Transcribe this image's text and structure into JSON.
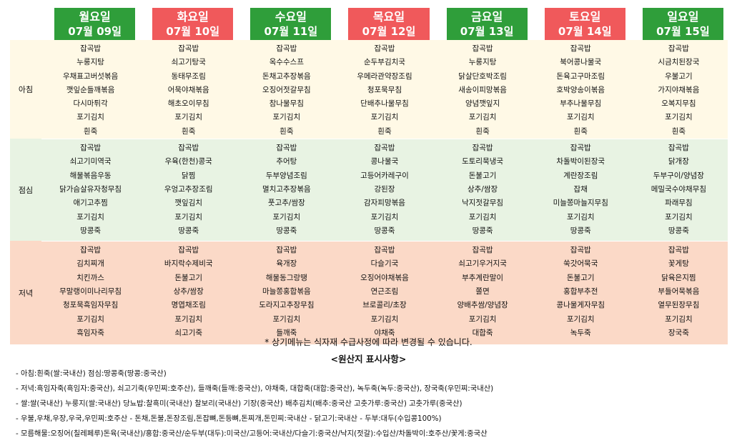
{
  "days": [
    {
      "name": "월요일",
      "date": "07월 09일",
      "color": "green"
    },
    {
      "name": "화요일",
      "date": "07월 10일",
      "color": "red"
    },
    {
      "name": "수요일",
      "date": "07월 11일",
      "color": "green"
    },
    {
      "name": "목요일",
      "date": "07월 12일",
      "color": "red"
    },
    {
      "name": "금요일",
      "date": "07월 13일",
      "color": "green"
    },
    {
      "name": "토요일",
      "date": "07월 14일",
      "color": "red"
    },
    {
      "name": "일요일",
      "date": "07월 15일",
      "color": "green"
    }
  ],
  "colors": {
    "green_header": "#2f9e3a",
    "red_header": "#f0595b",
    "breakfast_bg": "#fff9e6",
    "lunch_bg": "#e8f3e3",
    "dinner_bg": "#fbd9c7"
  },
  "meals": [
    {
      "label": "아침",
      "days": [
        [
          "잡곡밥",
          "누룽지탕",
          "우채표고버섯볶음",
          "깻잎순들깨볶음",
          "다시마튀각",
          "포기김치",
          "흰죽"
        ],
        [
          "잡곡밥",
          "쇠고기탕국",
          "동태무조림",
          "어묵야채볶음",
          "해초오이무침",
          "포기김치",
          "흰죽"
        ],
        [
          "잡곡밥",
          "옥수수스프",
          "돈채고추장볶음",
          "오징어젓갈무침",
          "참나물무침",
          "포기김치",
          "흰죽"
        ],
        [
          "잡곡밥",
          "순두부김치국",
          "우메라관약장조림",
          "청포묵무침",
          "단배추나물무침",
          "포기김치",
          "흰죽"
        ],
        [
          "잡곡밥",
          "누룽지탕",
          "닭살단호박조림",
          "새송이피망볶음",
          "양념깻잎지",
          "포기김치",
          "흰죽"
        ],
        [
          "잡곡밥",
          "북어콩나물국",
          "돈육고구마조림",
          "호박양송이볶음",
          "부추나물무침",
          "포기김치",
          "흰죽"
        ],
        [
          "잡곡밥",
          "시금치된장국",
          "우불고기",
          "가지야채볶음",
          "오복지무침",
          "포기김치",
          "흰죽"
        ]
      ]
    },
    {
      "label": "점심",
      "days": [
        [
          "잡곡밥",
          "쇠고기미역국",
          "해물볶음우동",
          "닭가슴살유자청무침",
          "애기고추찜",
          "포기김치",
          "땅콩죽"
        ],
        [
          "잡곡밥",
          "우육(한천)콩국",
          "닭찜",
          "우엉고추장조림",
          "깻잎김치",
          "포기김치",
          "땅콩죽"
        ],
        [
          "잡곡밥",
          "추어탕",
          "두부양념조림",
          "멸치고추장볶음",
          "풋고추/쌈장",
          "포기김치",
          "땅콩죽"
        ],
        [
          "잡곡밥",
          "콩나물국",
          "고등어카레구이",
          "강된장",
          "감자피망볶음",
          "포기김치",
          "땅콩죽"
        ],
        [
          "잡곡밥",
          "도토리묵냉국",
          "돈불고기",
          "상추/쌈장",
          "낙지젓갈무침",
          "포기김치",
          "땅콩죽"
        ],
        [
          "잡곡밥",
          "차돌박이된장국",
          "계란장조림",
          "잡채",
          "미늘쫑마늘지무침",
          "포기김치",
          "땅콩죽"
        ],
        [
          "잡곡밥",
          "닭개장",
          "두부구이/양념장",
          "메밀국수야채무침",
          "파래무침",
          "포기김치",
          "땅콩죽"
        ]
      ]
    },
    {
      "label": "저녁",
      "days": [
        [
          "잡곡밥",
          "김치찌개",
          "치킨까스",
          "무말랭이미나리무침",
          "청포묵흑임자무침",
          "포기김치",
          "흑임자죽"
        ],
        [
          "잡곡밥",
          "바지락수제비국",
          "돈불고기",
          "상추/쌈장",
          "명엽채조림",
          "포기김치",
          "쇠고기죽"
        ],
        [
          "잡곡밥",
          "육개장",
          "해물동그랑땡",
          "마늘쫑홍합볶음",
          "도라지고추장무침",
          "포기김치",
          "들깨죽"
        ],
        [
          "잡곡밥",
          "다슬기국",
          "오징어야채볶음",
          "연근조림",
          "브로콜리/초장",
          "포기김치",
          "야채죽"
        ],
        [
          "잡곡밥",
          "쇠고기우거지국",
          "부추계란말이",
          "쫄면",
          "양배추쌈/양념장",
          "포기김치",
          "대합죽"
        ],
        [
          "잡곡밥",
          "쑥갓어묵국",
          "돈불고기",
          "홍합부추전",
          "콩나물게자무침",
          "포기김치",
          "녹두죽"
        ],
        [
          "잡곡밥",
          "꽃게탕",
          "닭육은지찜",
          "부들어묵볶음",
          "열무된장무침",
          "포기김치",
          "장국죽"
        ]
      ]
    }
  ],
  "note": "* 상기메뉴는 식자재 수급사정에 따라 변경될 수 있습니다.",
  "origin_title": "<원산지 표시사항>",
  "origin_lines": [
    "- 아침:흰죽(쌀:국내산) 점심:땅콩죽(땅콩:중국산)",
    "- 저녁:흑임자죽(흑임자:중국산), 쇠고기죽(우민찌:호주산), 들깨죽(들깨:중국산), 야채죽, 대합죽(대합:중국산), 녹두죽(녹두:중국산), 장국죽(우민찌:국내산)",
    "- 쌀:쌀(국내산) 누룽지(쌀:국내산) 당뇨밥:찰흑미(국내산) 찰보리(국내산) 기장(중국산) 배추김치(배추:중국산 고춧가루:중국산) 고춧가루(중국산)",
    "- 우불,우채,우장,우국,우민찌:호주산 - 돈채,돈불,돈장조림,돈잡뼈,돈등뼈,돈찌개,돈민찌:국내산 - 닭고기:국내산 - 두부:대두(수입콩100%)",
    "- 모름해물:오징어(칠레페루)돈육(국내산)/홍합:중국산/순두부(대두):미국산/고등어:국내산/다슬기:중국산/낙지(젓갈):수입산/차돌박이:호주산/꽃게:중국산"
  ]
}
